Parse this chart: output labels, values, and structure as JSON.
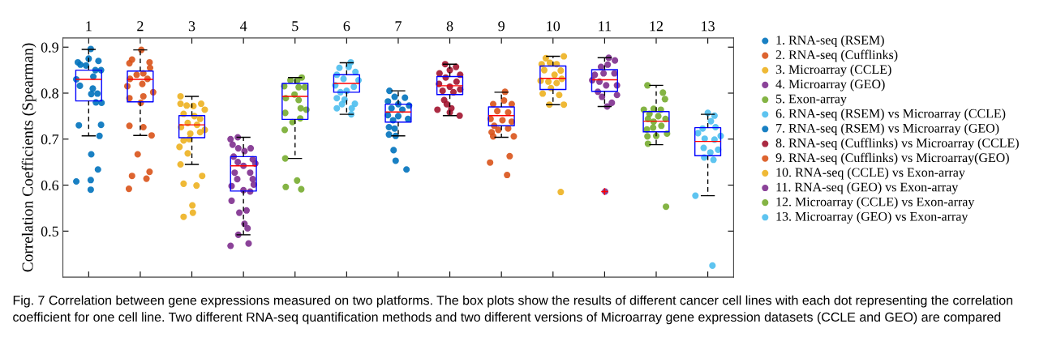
{
  "chart_data": {
    "type": "box",
    "ylabel": "Correlation Coefficients (Spearman)",
    "x": [
      1,
      2,
      3,
      4,
      5,
      6,
      7,
      8,
      9,
      10,
      11,
      12,
      13
    ],
    "xlim": [
      0.5,
      13.5
    ],
    "xticks": [
      1,
      2,
      3,
      4,
      5,
      6,
      7,
      8,
      9,
      10,
      11,
      12,
      13
    ],
    "ylim": [
      0.4,
      0.92
    ],
    "yticks": [
      0.5,
      0.6,
      0.7,
      0.8,
      0.9
    ],
    "grid": false,
    "legend": "right",
    "marker": "circle",
    "annotations": [
      "Fig. 7 Correlation between gene expressions measured on two platforms. The box plots show the results of different cancer cell lines with each dot representing the correlation coefficient for one cell line. Two different RNA-seq quantification methods and two different versions of Microarray gene expression datasets (CCLE and GEO) are compared"
    ],
    "boxes": [
      {
        "low": 0.707,
        "q1": 0.783,
        "median": 0.83,
        "q3": 0.85,
        "high": 0.895
      },
      {
        "low": 0.708,
        "q1": 0.781,
        "median": 0.83,
        "q3": 0.848,
        "high": 0.894
      },
      {
        "low": 0.645,
        "q1": 0.703,
        "median": 0.731,
        "q3": 0.751,
        "high": 0.793
      },
      {
        "low": 0.492,
        "q1": 0.587,
        "median": 0.642,
        "q3": 0.662,
        "high": 0.704
      },
      {
        "low": 0.658,
        "q1": 0.743,
        "median": 0.793,
        "q3": 0.821,
        "high": 0.834
      },
      {
        "low": 0.754,
        "q1": 0.802,
        "median": 0.821,
        "q3": 0.84,
        "high": 0.866
      },
      {
        "low": 0.707,
        "q1": 0.737,
        "median": 0.759,
        "q3": 0.776,
        "high": 0.805
      },
      {
        "low": 0.751,
        "q1": 0.797,
        "median": 0.816,
        "q3": 0.836,
        "high": 0.863
      },
      {
        "low": 0.704,
        "q1": 0.729,
        "median": 0.751,
        "q3": 0.77,
        "high": 0.802
      },
      {
        "low": 0.775,
        "q1": 0.808,
        "median": 0.832,
        "q3": 0.859,
        "high": 0.88
      },
      {
        "low": 0.771,
        "q1": 0.804,
        "median": 0.829,
        "q3": 0.851,
        "high": 0.877,
        "outliers": [
          0.586
        ]
      },
      {
        "low": 0.688,
        "q1": 0.716,
        "median": 0.739,
        "q3": 0.76,
        "high": 0.817
      },
      {
        "low": 0.577,
        "q1": 0.664,
        "median": 0.695,
        "q3": 0.725,
        "high": 0.754
      }
    ],
    "series": [
      {
        "name": "1. RNA-seq (RSEM)",
        "type": "scatter",
        "color": "#0072bd",
        "x": [
          1.04,
          0.76,
          0.79,
          0.84,
          0.83,
          1.0,
          1.19,
          1.24,
          1.13,
          1.09,
          1.08,
          1.17,
          1.05,
          1.25,
          1.14,
          0.95,
          0.81,
          1.24,
          1.21,
          1.05,
          1.18,
          0.76,
          1.04,
          1.04
        ],
        "values": [
          0.896,
          0.83,
          0.867,
          0.862,
          0.816,
          0.875,
          0.87,
          0.85,
          0.85,
          0.836,
          0.81,
          0.799,
          0.798,
          0.779,
          0.78,
          0.86,
          0.73,
          0.731,
          0.707,
          0.667,
          0.634,
          0.608,
          0.611,
          0.59
        ]
      },
      {
        "name": "2. RNA-seq (Cufflinks)",
        "type": "scatter",
        "color": "#d95319",
        "x": [
          2.02,
          1.84,
          1.79,
          2.18,
          2.19,
          2.06,
          1.93,
          1.8,
          2.14,
          1.75,
          2.04,
          2.25,
          1.79,
          2.06,
          2.01,
          1.79,
          2.06,
          2.22,
          1.95,
          1.84,
          2.18,
          2.12,
          1.78
        ],
        "values": [
          0.894,
          0.873,
          0.865,
          0.867,
          0.855,
          0.843,
          0.84,
          0.831,
          0.831,
          0.815,
          0.82,
          0.802,
          0.789,
          0.793,
          0.779,
          0.729,
          0.726,
          0.708,
          0.667,
          0.62,
          0.629,
          0.614,
          0.592
        ]
      },
      {
        "name": "3. Microarray (CCLE)",
        "type": "scatter",
        "color": "#edb120",
        "x": [
          2.78,
          2.78,
          2.9,
          3.03,
          3.18,
          3.25,
          2.84,
          3.05,
          3.16,
          2.92,
          3.1,
          2.79,
          3.25,
          2.97,
          3.16,
          2.84,
          2.95,
          2.76,
          2.92,
          2.78,
          3.2,
          2.84,
          3.09,
          3.01,
          3.02,
          2.84
        ],
        "values": [
          0.793,
          0.777,
          0.773,
          0.772,
          0.777,
          0.764,
          0.755,
          0.75,
          0.744,
          0.735,
          0.731,
          0.726,
          0.72,
          0.712,
          0.715,
          0.697,
          0.7,
          0.683,
          0.669,
          0.645,
          0.62,
          0.603,
          0.599,
          0.556,
          0.54,
          0.531
        ]
      },
      {
        "name": "4. Microarray (GEO)",
        "type": "scatter",
        "color": "#7e2f8e",
        "x": [
          3.89,
          3.75,
          3.79,
          3.9,
          4.14,
          4.02,
          3.81,
          4.18,
          3.89,
          4.23,
          4.0,
          3.83,
          4.13,
          3.88,
          4.18,
          3.77,
          4.2,
          4.0,
          4.13,
          3.77,
          4.06,
          3.92,
          4.02,
          4.08,
          3.9,
          3.75,
          4.1
        ],
        "values": [
          0.704,
          0.7,
          0.688,
          0.68,
          0.68,
          0.674,
          0.662,
          0.656,
          0.65,
          0.647,
          0.642,
          0.627,
          0.627,
          0.613,
          0.613,
          0.598,
          0.601,
          0.589,
          0.586,
          0.566,
          0.545,
          0.54,
          0.516,
          0.506,
          0.492,
          0.468,
          0.473
        ]
      },
      {
        "name": "5. Exon-array",
        "type": "scatter",
        "color": "#77ac30",
        "x": [
          4.91,
          5.13,
          5.04,
          4.79,
          5.07,
          5.19,
          4.99,
          4.82,
          5.07,
          5.11,
          5.22,
          4.81,
          5.1,
          4.95,
          4.8,
          4.81,
          5.04,
          4.82,
          5.12
        ],
        "values": [
          0.828,
          0.834,
          0.827,
          0.815,
          0.813,
          0.813,
          0.797,
          0.789,
          0.785,
          0.767,
          0.764,
          0.757,
          0.745,
          0.737,
          0.72,
          0.658,
          0.61,
          0.596,
          0.591
        ]
      },
      {
        "name": "6. RNA-seq (RSEM) vs Microarray (CCLE)",
        "type": "scatter",
        "color": "#4dbeee",
        "x": [
          6.08,
          5.86,
          6.04,
          5.81,
          6.17,
          6.23,
          5.94,
          5.78,
          6.14,
          6.0,
          5.88,
          5.81,
          5.96,
          6.16,
          5.91,
          5.81,
          6.1,
          6.09
        ],
        "values": [
          0.867,
          0.855,
          0.857,
          0.84,
          0.846,
          0.828,
          0.831,
          0.817,
          0.814,
          0.805,
          0.802,
          0.789,
          0.786,
          0.777,
          0.776,
          0.767,
          0.767,
          0.754
        ]
      },
      {
        "name": "7. RNA-seq (RSEM) vs Microarray (GEO)",
        "type": "scatter",
        "color": "#0072bd",
        "x": [
          6.83,
          7.13,
          6.93,
          6.8,
          7.0,
          7.21,
          6.87,
          7.08,
          6.8,
          7.0,
          7.19,
          6.9,
          6.82,
          6.93,
          6.82,
          6.95,
          6.91,
          6.95,
          7.16
        ],
        "values": [
          0.805,
          0.79,
          0.792,
          0.782,
          0.776,
          0.773,
          0.767,
          0.764,
          0.752,
          0.75,
          0.744,
          0.741,
          0.726,
          0.723,
          0.71,
          0.707,
          0.676,
          0.653,
          0.634
        ]
      },
      {
        "name": "8. RNA-seq (Cufflinks) vs Microarray (CCLE)",
        "type": "scatter",
        "color": "#a2142f",
        "x": [
          7.91,
          8.12,
          8.0,
          7.8,
          8.2,
          7.92,
          8.13,
          7.79,
          8.0,
          8.2,
          7.86,
          8.07,
          7.89,
          7.94,
          8.03,
          7.76,
          8.0,
          8.19
        ],
        "values": [
          0.863,
          0.857,
          0.85,
          0.843,
          0.84,
          0.834,
          0.825,
          0.82,
          0.814,
          0.808,
          0.805,
          0.802,
          0.785,
          0.776,
          0.767,
          0.764,
          0.758,
          0.751
        ]
      },
      {
        "name": "9. RNA-seq (Cufflinks) vs Microarray(GEO)",
        "type": "scatter",
        "color": "#d95319",
        "x": [
          9.07,
          9.05,
          8.84,
          9.2,
          8.92,
          9.13,
          8.79,
          9.02,
          9.2,
          8.86,
          9.13,
          8.81,
          8.94,
          8.84,
          9.24,
          9.16,
          8.78,
          9.11
        ],
        "values": [
          0.803,
          0.784,
          0.776,
          0.776,
          0.761,
          0.758,
          0.744,
          0.741,
          0.738,
          0.729,
          0.723,
          0.715,
          0.72,
          0.706,
          0.706,
          0.663,
          0.649,
          0.622
        ]
      },
      {
        "name": "10. RNA-seq (CCLE) vs Exon-array",
        "type": "scatter",
        "color": "#edb120",
        "x": [
          10.21,
          9.86,
          9.94,
          10.07,
          9.78,
          10.15,
          9.83,
          10.03,
          9.76,
          10.17,
          9.91,
          10.07,
          9.96,
          10.12,
          9.8,
          9.93,
          10.21,
          10.15
        ],
        "values": [
          0.88,
          0.876,
          0.866,
          0.863,
          0.863,
          0.849,
          0.85,
          0.84,
          0.827,
          0.831,
          0.825,
          0.822,
          0.811,
          0.796,
          0.799,
          0.775,
          0.775,
          0.585
        ]
      },
      {
        "name": "11. RNA-seq (GEO) vs Exon-array",
        "type": "scatter",
        "color": "#7e2f8e",
        "x": [
          11.08,
          11.2,
          10.93,
          11.06,
          10.81,
          11.19,
          10.98,
          10.76,
          10.9,
          11.03,
          11.24,
          10.87,
          11.24,
          10.95,
          11.14,
          11.05,
          11.01
        ],
        "values": [
          0.877,
          0.871,
          0.857,
          0.862,
          0.84,
          0.843,
          0.843,
          0.828,
          0.825,
          0.817,
          0.817,
          0.803,
          0.796,
          0.792,
          0.779,
          0.771,
          0.586
        ]
      },
      {
        "name": "12. Microarray (CCLE) vs Exon-array",
        "type": "scatter",
        "color": "#77ac30",
        "x": [
          11.83,
          12.13,
          12.17,
          11.76,
          11.95,
          12.09,
          11.87,
          12.04,
          11.84,
          12.18,
          11.95,
          12.1,
          11.94,
          11.82,
          12.21,
          12.0,
          11.83,
          11.84,
          12.19
        ],
        "values": [
          0.817,
          0.801,
          0.787,
          0.764,
          0.766,
          0.764,
          0.755,
          0.75,
          0.744,
          0.744,
          0.738,
          0.729,
          0.725,
          0.721,
          0.712,
          0.707,
          0.706,
          0.69,
          0.553
        ]
      },
      {
        "name": "13. Microarray (GEO) vs Exon-array",
        "type": "scatter",
        "color": "#4dbeee",
        "x": [
          13.0,
          13.13,
          13.06,
          12.9,
          13.15,
          12.81,
          13.25,
          12.94,
          13.13,
          12.92,
          13.2,
          13.05,
          12.93,
          13.11,
          12.76,
          13.09
        ],
        "values": [
          0.757,
          0.751,
          0.739,
          0.723,
          0.726,
          0.713,
          0.707,
          0.701,
          0.699,
          0.681,
          0.677,
          0.671,
          0.66,
          0.655,
          0.577,
          0.425
        ]
      }
    ]
  }
}
